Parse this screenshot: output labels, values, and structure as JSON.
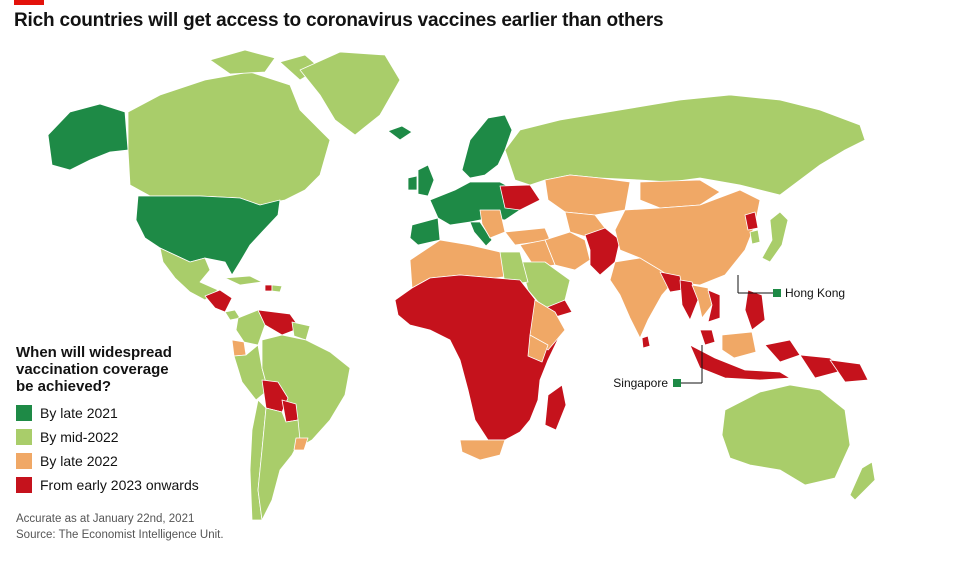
{
  "title": "Rich countries will get access to coronavirus vaccines earlier than others",
  "legend": {
    "title_lines": [
      "When will widespread",
      "vaccination coverage",
      "be achieved?"
    ],
    "items": [
      {
        "label": "By late 2021",
        "color": "#1e8a46"
      },
      {
        "label": "By mid-2022",
        "color": "#a9cd6a"
      },
      {
        "label": "By late 2022",
        "color": "#f0a866"
      },
      {
        "label": "From early 2023 onwards",
        "color": "#c5121c"
      }
    ]
  },
  "annotations": {
    "hong_kong": "Hong Kong",
    "singapore": "Singapore"
  },
  "footnote": {
    "accuracy": "Accurate as at January 22nd, 2021",
    "source": "Source: The Economist Intelligence Unit."
  },
  "colors": {
    "late_2021": "#1e8a46",
    "mid_2022": "#a9cd6a",
    "late_2022": "#f0a866",
    "early_2023": "#c5121c",
    "border": "#ffffff"
  }
}
